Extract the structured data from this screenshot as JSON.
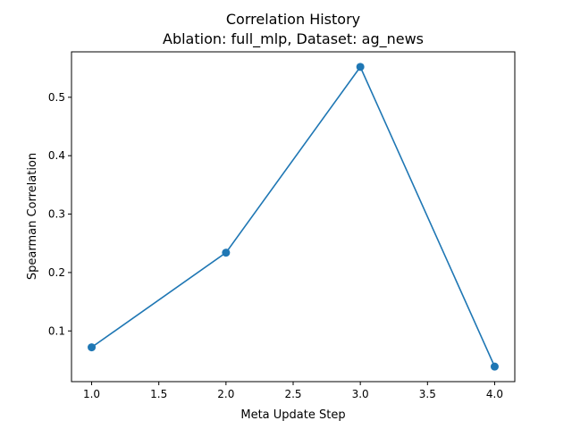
{
  "chart_data": {
    "type": "line",
    "title": "Correlation History",
    "subtitle": "Ablation: full_mlp, Dataset: ag_news",
    "xlabel": "Meta Update Step",
    "ylabel": "Spearman Correlation",
    "x": [
      1.0,
      2.0,
      3.0,
      4.0
    ],
    "series": [
      {
        "values": [
          0.072,
          0.234,
          0.552,
          0.039
        ]
      }
    ],
    "xlim": [
      0.85,
      4.15
    ],
    "ylim": [
      0.0132,
      0.5778
    ],
    "xticks": [
      "1.0",
      "1.5",
      "2.0",
      "2.5",
      "3.0",
      "3.5",
      "4.0"
    ],
    "xtick_values": [
      1.0,
      1.5,
      2.0,
      2.5,
      3.0,
      3.5,
      4.0
    ],
    "yticks": [
      "0.1",
      "0.2",
      "0.3",
      "0.4",
      "0.5"
    ],
    "ytick_values": [
      0.1,
      0.2,
      0.3,
      0.4,
      0.5
    ],
    "grid": false,
    "line_color": "#1f77b4",
    "marker": "circle"
  }
}
